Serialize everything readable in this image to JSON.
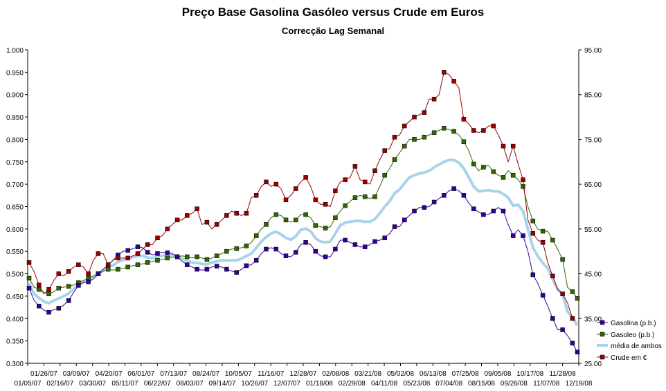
{
  "chart_data": {
    "type": "line",
    "title": "Preço Base Gasolina Gasóleo versus Crude em Euros",
    "subtitle": "Correcção Lag Semanal",
    "y_left": {
      "min": 0.3,
      "max": 1.0,
      "step": 0.05,
      "ticks": [
        "0.300",
        "0.350",
        "0.400",
        "0.450",
        "0.500",
        "0.550",
        "0.600",
        "0.650",
        "0.700",
        "0.750",
        "0.800",
        "0.850",
        "0.900",
        "0.950",
        "1.000"
      ]
    },
    "y_right": {
      "min": 25,
      "max": 95,
      "step": 10,
      "ticks": [
        "25.00",
        "35.00",
        "45.00",
        "55.00",
        "65.00",
        "75.00",
        "85.00",
        "95.00"
      ]
    },
    "x_tick_labels_top": [
      "01/26/07",
      "03/09/07",
      "04/20/07",
      "06/01/07",
      "07/13/07",
      "08/24/07",
      "10/05/07",
      "11/16/07",
      "12/28/07",
      "02/08/08",
      "03/21/08",
      "05/02/08",
      "06/13/08",
      "07/25/08",
      "09/05/08",
      "10/17/08",
      "11/28/08"
    ],
    "x_tick_labels_bottom": [
      "01/05/07",
      "02/16/07",
      "03/30/07",
      "05/11/07",
      "06/22/07",
      "08/03/07",
      "09/14/07",
      "10/26/07",
      "12/07/07",
      "01/18/08",
      "02/29/08",
      "04/11/08",
      "05/23/08",
      "07/04/08",
      "08/15/08",
      "09/26/08",
      "11/07/08",
      "12/19/08"
    ],
    "legend_position": "right",
    "series": [
      {
        "name": "Gasolina (p.b.)",
        "axis": "left",
        "color": "#330099",
        "marker": "square",
        "values": [
          0.468,
          0.441,
          0.428,
          0.419,
          0.414,
          0.42,
          0.423,
          0.43,
          0.44,
          0.458,
          0.474,
          0.48,
          0.482,
          0.488,
          0.5,
          0.51,
          0.52,
          0.53,
          0.542,
          0.55,
          0.552,
          0.556,
          0.56,
          0.558,
          0.548,
          0.542,
          0.545,
          0.548,
          0.547,
          0.545,
          0.538,
          0.528,
          0.52,
          0.515,
          0.51,
          0.508,
          0.51,
          0.515,
          0.517,
          0.515,
          0.51,
          0.506,
          0.503,
          0.51,
          0.518,
          0.52,
          0.53,
          0.545,
          0.555,
          0.558,
          0.555,
          0.545,
          0.54,
          0.538,
          0.548,
          0.565,
          0.57,
          0.565,
          0.55,
          0.54,
          0.538,
          0.538,
          0.555,
          0.575,
          0.575,
          0.57,
          0.565,
          0.56,
          0.56,
          0.565,
          0.572,
          0.575,
          0.58,
          0.59,
          0.605,
          0.605,
          0.62,
          0.63,
          0.64,
          0.648,
          0.648,
          0.65,
          0.66,
          0.668,
          0.675,
          0.685,
          0.69,
          0.685,
          0.675,
          0.658,
          0.645,
          0.638,
          0.632,
          0.632,
          0.64,
          0.648,
          0.64,
          0.61,
          0.585,
          0.598,
          0.585,
          0.55,
          0.498,
          0.478,
          0.452,
          0.428,
          0.4,
          0.375,
          0.375,
          0.362,
          0.345,
          0.325
        ]
      },
      {
        "name": "Gasoleo (p.b.)",
        "axis": "left",
        "color": "#336600",
        "marker": "square",
        "values": [
          0.49,
          0.47,
          0.465,
          0.458,
          0.455,
          0.46,
          0.468,
          0.47,
          0.472,
          0.475,
          0.48,
          0.485,
          0.49,
          0.495,
          0.5,
          0.505,
          0.51,
          0.508,
          0.51,
          0.512,
          0.515,
          0.518,
          0.52,
          0.522,
          0.525,
          0.528,
          0.53,
          0.532,
          0.535,
          0.537,
          0.538,
          0.54,
          0.538,
          0.535,
          0.538,
          0.535,
          0.532,
          0.535,
          0.54,
          0.545,
          0.55,
          0.555,
          0.556,
          0.558,
          0.562,
          0.57,
          0.585,
          0.6,
          0.61,
          0.625,
          0.632,
          0.63,
          0.62,
          0.615,
          0.62,
          0.632,
          0.632,
          0.625,
          0.608,
          0.605,
          0.602,
          0.605,
          0.625,
          0.64,
          0.652,
          0.662,
          0.67,
          0.675,
          0.672,
          0.668,
          0.672,
          0.695,
          0.72,
          0.735,
          0.755,
          0.77,
          0.785,
          0.8,
          0.8,
          0.8,
          0.805,
          0.81,
          0.815,
          0.82,
          0.825,
          0.822,
          0.818,
          0.81,
          0.795,
          0.775,
          0.745,
          0.73,
          0.738,
          0.742,
          0.728,
          0.72,
          0.715,
          0.73,
          0.72,
          0.71,
          0.695,
          0.65,
          0.618,
          0.6,
          0.595,
          0.595,
          0.575,
          0.555,
          0.532,
          0.47,
          0.46,
          0.445
        ]
      },
      {
        "name": "média de ambos",
        "axis": "left",
        "color": "#a8d4ea",
        "marker": "none",
        "values": [
          0.479,
          0.455,
          0.446,
          0.438,
          0.434,
          0.44,
          0.445,
          0.45,
          0.456,
          0.466,
          0.477,
          0.482,
          0.486,
          0.492,
          0.5,
          0.508,
          0.515,
          0.519,
          0.526,
          0.531,
          0.534,
          0.537,
          0.54,
          0.54,
          0.536,
          0.535,
          0.538,
          0.54,
          0.541,
          0.541,
          0.538,
          0.534,
          0.529,
          0.525,
          0.524,
          0.522,
          0.521,
          0.525,
          0.528,
          0.53,
          0.53,
          0.53,
          0.53,
          0.534,
          0.54,
          0.545,
          0.558,
          0.572,
          0.582,
          0.59,
          0.594,
          0.588,
          0.58,
          0.576,
          0.584,
          0.598,
          0.601,
          0.595,
          0.579,
          0.572,
          0.57,
          0.572,
          0.59,
          0.608,
          0.614,
          0.616,
          0.618,
          0.618,
          0.616,
          0.616,
          0.622,
          0.635,
          0.65,
          0.662,
          0.68,
          0.688,
          0.702,
          0.715,
          0.72,
          0.724,
          0.726,
          0.73,
          0.738,
          0.744,
          0.75,
          0.754,
          0.754,
          0.748,
          0.735,
          0.716,
          0.695,
          0.684,
          0.685,
          0.687,
          0.684,
          0.684,
          0.678,
          0.67,
          0.652,
          0.654,
          0.64,
          0.6,
          0.558,
          0.539,
          0.524,
          0.512,
          0.488,
          0.465,
          0.454,
          0.416,
          0.402,
          0.385
        ]
      },
      {
        "name": "Crude em €",
        "axis": "right",
        "color": "#990000",
        "marker": "square",
        "values": [
          47.5,
          45.5,
          42.5,
          40.5,
          41.5,
          43.5,
          45,
          44.5,
          45.5,
          46.5,
          47,
          46.5,
          45,
          48,
          49.5,
          49.5,
          47,
          48,
          48.5,
          48.5,
          48.5,
          49,
          49.5,
          50.5,
          51.5,
          51.5,
          53,
          53.5,
          55,
          56,
          57,
          57,
          58,
          58.5,
          59.5,
          56,
          56.5,
          55,
          56,
          57,
          58,
          59,
          58.5,
          58,
          58.5,
          62,
          62.5,
          64.5,
          65.5,
          64.5,
          65,
          64,
          61.5,
          62.5,
          64,
          65.5,
          66.5,
          64.5,
          61.5,
          60.5,
          60.5,
          60,
          63.5,
          65.5,
          66,
          66.5,
          69,
          66,
          65.5,
          65,
          68,
          70.5,
          72.5,
          73,
          75.5,
          76,
          78,
          79,
          80,
          80.5,
          81,
          84,
          84,
          85,
          90,
          89.5,
          88,
          86.5,
          79.5,
          78.5,
          77,
          76.5,
          77,
          78,
          78,
          76,
          73.5,
          70,
          73.5,
          69.5,
          66,
          57,
          54,
          52.5,
          52,
          47.5,
          44.5,
          41.5,
          40.5,
          38.5,
          35
        ]
      }
    ],
    "series_marker_every": [
      2,
      2,
      0,
      2
    ]
  }
}
